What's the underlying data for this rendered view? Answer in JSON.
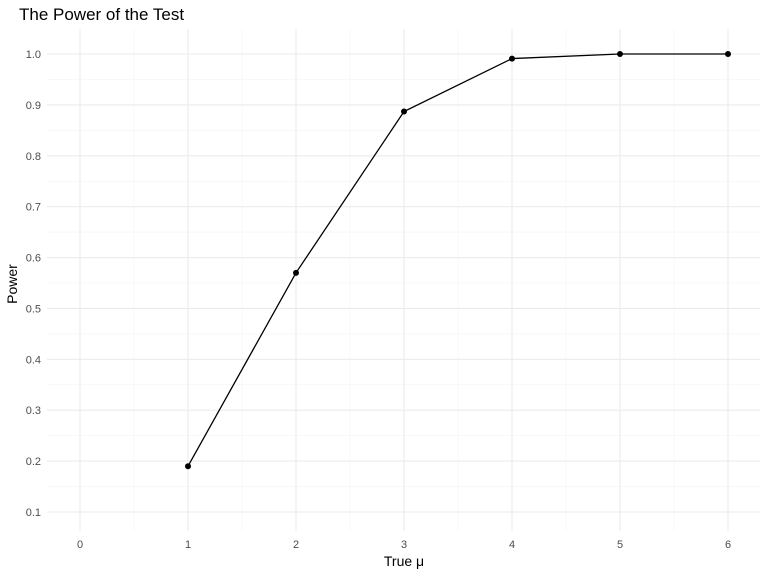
{
  "chart_data": {
    "type": "line",
    "title": "The Power of the Test",
    "xlabel": "True μ",
    "ylabel": "Power",
    "x": [
      1,
      2,
      3,
      4,
      5,
      6
    ],
    "series": [
      {
        "values": [
          0.19,
          0.57,
          0.887,
          0.991,
          1.0,
          1.0
        ]
      }
    ],
    "xlim": [
      0,
      6
    ],
    "ylim": [
      0.1,
      1.0
    ],
    "x_ticks": [
      "0",
      "1",
      "2",
      "3",
      "4",
      "5",
      "6"
    ],
    "y_ticks": [
      "0.1",
      "0.2",
      "0.3",
      "0.4",
      "0.5",
      "0.6",
      "0.7",
      "0.8",
      "0.9",
      "1.0"
    ],
    "grid": true,
    "markers": true,
    "colors": {
      "line": "#000000",
      "grid": "#ebebeb"
    }
  }
}
